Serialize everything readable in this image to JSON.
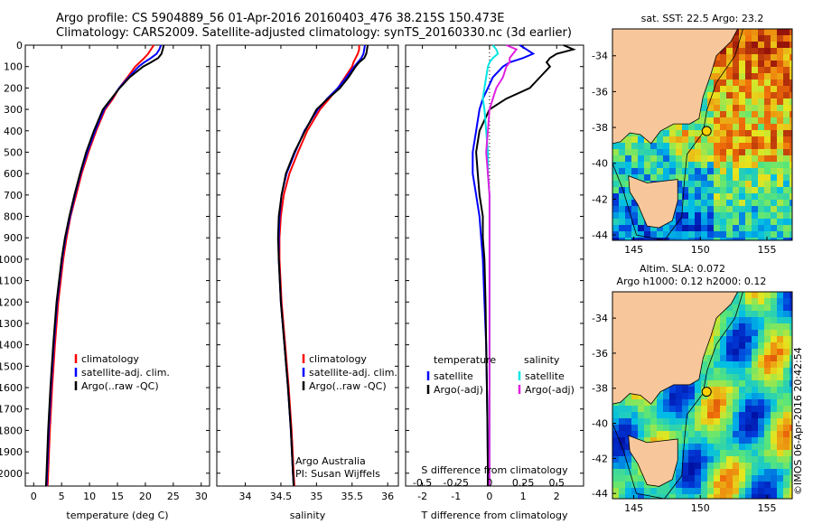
{
  "titles": {
    "line1": "Argo profile: CS 5904889_56 01-Apr-2016 20160403_476 38.215S 150.473E",
    "line2": "Climatology: CARS2009. Satellite-adjusted climatology: synTS_20160330.nc (3d earlier)"
  },
  "colors": {
    "climatology": "#ff0000",
    "satellite": "#0000ff",
    "argo": "#000000",
    "sat_salinity": "#00e5e5",
    "argo_salinity": "#e020e0",
    "land": "#f7c79b"
  },
  "depth_axis": {
    "ticks": [
      0,
      100,
      200,
      300,
      400,
      500,
      600,
      700,
      800,
      900,
      1000,
      1100,
      1200,
      1300,
      1400,
      1500,
      1600,
      1700,
      1800,
      1900,
      2000
    ],
    "range": [
      0,
      2060
    ]
  },
  "legend": {
    "climatology": "climatology",
    "satellite": "satellite-adj. clim.",
    "argo": "Argo(..raw -QC)"
  },
  "chart_data": [
    {
      "type": "line",
      "title": "",
      "xlabel": "temperature (deg C)",
      "ylabel": "depth",
      "xlim": [
        -1.5,
        31.5
      ],
      "ylim": [
        0,
        2060
      ],
      "xticks": [
        0,
        5,
        10,
        15,
        20,
        25,
        30
      ],
      "depth": [
        0,
        20,
        40,
        60,
        80,
        100,
        150,
        200,
        250,
        300,
        400,
        500,
        600,
        700,
        800,
        900,
        1000,
        1200,
        1400,
        1600,
        1800,
        2000,
        2060
      ],
      "series": [
        {
          "name": "climatology",
          "values": [
            21.5,
            21.0,
            20.5,
            19.8,
            19.0,
            18.2,
            16.8,
            15.3,
            14.2,
            12.8,
            11.2,
            9.8,
            8.6,
            7.6,
            6.6,
            5.9,
            5.3,
            4.4,
            3.8,
            3.3,
            2.9,
            2.6,
            2.5
          ]
        },
        {
          "name": "satellite-adj. clim.",
          "values": [
            22.8,
            22.5,
            22.0,
            21.0,
            19.8,
            18.8,
            17.0,
            15.3,
            14.0,
            12.6,
            11.0,
            9.6,
            8.4,
            7.4,
            6.5,
            5.7,
            5.1,
            4.2,
            3.6,
            3.1,
            2.7,
            2.4,
            2.3
          ]
        },
        {
          "name": "Argo(..raw -QC)",
          "values": [
            23.3,
            23.1,
            22.9,
            22.3,
            21.0,
            19.6,
            17.2,
            15.4,
            13.9,
            12.4,
            10.8,
            9.4,
            8.3,
            7.3,
            6.4,
            5.6,
            5.0,
            4.1,
            3.5,
            3.0,
            2.6,
            2.3,
            2.2
          ]
        }
      ]
    },
    {
      "type": "line",
      "title": "",
      "xlabel": "salinity",
      "ylabel": "",
      "xlim": [
        33.6,
        36.15
      ],
      "ylim": [
        0,
        2060
      ],
      "xticks": [
        34,
        34.5,
        35,
        35.5,
        36
      ],
      "depth": [
        0,
        20,
        40,
        60,
        80,
        100,
        150,
        200,
        250,
        300,
        400,
        500,
        600,
        700,
        800,
        900,
        1000,
        1200,
        1400,
        1600,
        1800,
        2000,
        2060
      ],
      "series": [
        {
          "name": "climatology",
          "values": [
            35.6,
            35.6,
            35.58,
            35.55,
            35.52,
            35.5,
            35.4,
            35.3,
            35.18,
            35.05,
            34.87,
            34.74,
            34.62,
            34.54,
            34.5,
            34.48,
            34.48,
            34.51,
            34.56,
            34.61,
            34.65,
            34.68,
            34.69
          ]
        },
        {
          "name": "satellite-adj. clim.",
          "values": [
            35.68,
            35.67,
            35.66,
            35.63,
            35.58,
            35.53,
            35.42,
            35.3,
            35.15,
            35.02,
            34.83,
            34.7,
            34.58,
            34.51,
            34.48,
            34.47,
            34.47,
            34.5,
            34.55,
            34.6,
            34.64,
            34.67,
            34.68
          ]
        },
        {
          "name": "Argo(..raw -QC)",
          "values": [
            35.72,
            35.71,
            35.7,
            35.67,
            35.6,
            35.55,
            35.45,
            35.33,
            35.16,
            35.0,
            34.84,
            34.69,
            34.57,
            34.51,
            34.47,
            34.46,
            34.47,
            34.5,
            34.55,
            34.6,
            34.64,
            34.67,
            34.68
          ]
        }
      ],
      "annotation": [
        "Argo Australia",
        "PI: Susan Wijffels"
      ]
    },
    {
      "type": "line",
      "title": "S difference from climatology",
      "xlabel": "T difference from climatology",
      "ylabel": "",
      "xlim": [
        -2.5,
        2.8
      ],
      "ylim": [
        0,
        2060
      ],
      "xticks": [
        -2,
        -1,
        0,
        1,
        2
      ],
      "top_ticks": [
        {
          "label": "-0.5",
          "x": -2
        },
        {
          "label": "-0.25",
          "x": -1
        },
        {
          "label": "0",
          "x": 0
        },
        {
          "label": "0.25",
          "x": 1
        },
        {
          "label": "0.5",
          "x": 2
        }
      ],
      "depth": [
        0,
        20,
        40,
        60,
        80,
        100,
        150,
        200,
        250,
        300,
        400,
        500,
        600,
        700,
        800,
        900,
        1000,
        1200,
        1400,
        1600,
        1800,
        2000,
        2060
      ],
      "series": [
        {
          "name": "temperature satellite",
          "values": [
            0.9,
            1.1,
            1.3,
            1.0,
            0.6,
            0.4,
            0.1,
            -0.05,
            -0.2,
            -0.3,
            -0.4,
            -0.5,
            -0.5,
            -0.4,
            -0.3,
            -0.25,
            -0.2,
            -0.15,
            -0.1,
            -0.08,
            -0.06,
            -0.05,
            -0.05
          ]
        },
        {
          "name": "temperature Argo(-adj)",
          "values": [
            2.2,
            2.5,
            2.0,
            1.8,
            1.7,
            1.8,
            1.5,
            1.2,
            0.5,
            0.0,
            -0.3,
            -0.4,
            -0.35,
            -0.3,
            -0.2,
            -0.2,
            -0.15,
            -0.12,
            -0.1,
            -0.08,
            -0.06,
            -0.05,
            -0.05
          ]
        },
        {
          "name": "salinity satellite",
          "values": [
            0.1,
            0.2,
            0.25,
            0.1,
            0.0,
            -0.05,
            -0.1,
            -0.15,
            -0.2,
            -0.15,
            -0.1,
            -0.05,
            -0.05,
            0.0,
            0.0,
            0.0,
            0.0,
            0.0,
            0.0,
            0.0,
            0.0,
            0.0,
            0.0
          ]
        },
        {
          "name": "salinity Argo(-adj)",
          "values": [
            0.5,
            0.8,
            0.7,
            0.6,
            0.6,
            0.5,
            0.4,
            0.2,
            0.1,
            0.0,
            -0.05,
            -0.1,
            -0.05,
            0.0,
            0.0,
            0.0,
            0.0,
            0.0,
            0.0,
            0.0,
            0.0,
            0.0,
            0.0
          ]
        }
      ],
      "legend": {
        "temp_header": "temperature",
        "sal_header": "salinity",
        "satellite": "satellite",
        "argo": "Argo(-adj)"
      }
    },
    {
      "type": "heatmap",
      "title": "sat. SST: 22.5  Argo: 23.2",
      "xticks": [
        145,
        150,
        155
      ],
      "yticks": [
        -34,
        -36,
        -38,
        -40,
        -42,
        -44
      ],
      "xlim": [
        143.4,
        156.9
      ],
      "ylim": [
        -44.3,
        -32.5
      ],
      "marker": {
        "lon": 150.47,
        "lat": -38.2
      }
    },
    {
      "type": "heatmap",
      "title_line1": "Altim. SLA: 0.072",
      "title_line2": "Argo h1000: 0.12 h2000: 0.12",
      "xticks": [
        145,
        150,
        155
      ],
      "yticks": [
        -34,
        -36,
        -38,
        -40,
        -42,
        -44
      ],
      "xlim": [
        143.4,
        156.9
      ],
      "ylim": [
        -44.3,
        -32.5
      ],
      "marker": {
        "lon": 150.47,
        "lat": -38.2
      }
    }
  ],
  "credit": "©IMOS 06-Apr-2016 20:42:54"
}
